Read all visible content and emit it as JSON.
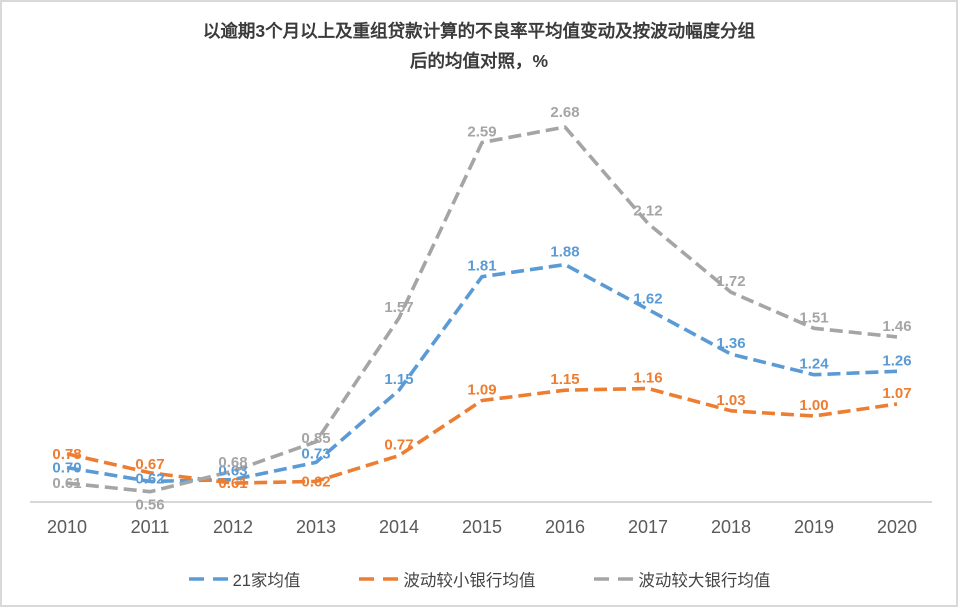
{
  "title": {
    "line1": "以逾期3个月以上及重组贷款计算的不良率平均值变动及按波动幅度分组",
    "line2": "后的均值对照，%"
  },
  "chart_data": {
    "type": "line",
    "x": [
      "2010",
      "2011",
      "2012",
      "2013",
      "2014",
      "2015",
      "2016",
      "2017",
      "2018",
      "2019",
      "2020"
    ],
    "series": [
      {
        "name": "21家均值",
        "color": "#5B9BD5",
        "line_style": "dashed",
        "values": [
          0.7,
          0.62,
          0.63,
          0.73,
          1.15,
          1.81,
          1.88,
          1.62,
          1.36,
          1.24,
          1.26
        ]
      },
      {
        "name": "波动较小银行均值",
        "color": "#ED7D31",
        "line_style": "dashed",
        "values": [
          0.78,
          0.67,
          0.61,
          0.62,
          0.77,
          1.09,
          1.15,
          1.16,
          1.03,
          1.0,
          1.07
        ]
      },
      {
        "name": "波动较大银行均值",
        "color": "#A5A5A5",
        "line_style": "dashed",
        "values": [
          0.61,
          0.56,
          0.68,
          0.85,
          1.57,
          2.59,
          2.68,
          2.12,
          1.72,
          1.51,
          1.46
        ]
      }
    ],
    "ylim": [
      0.5,
      3.0
    ],
    "grid": false,
    "y_axis_visible": false,
    "legend_position": "bottom",
    "data_labels": true,
    "axis_color": "#bfbfbf",
    "tick_label_color": "#595959"
  }
}
